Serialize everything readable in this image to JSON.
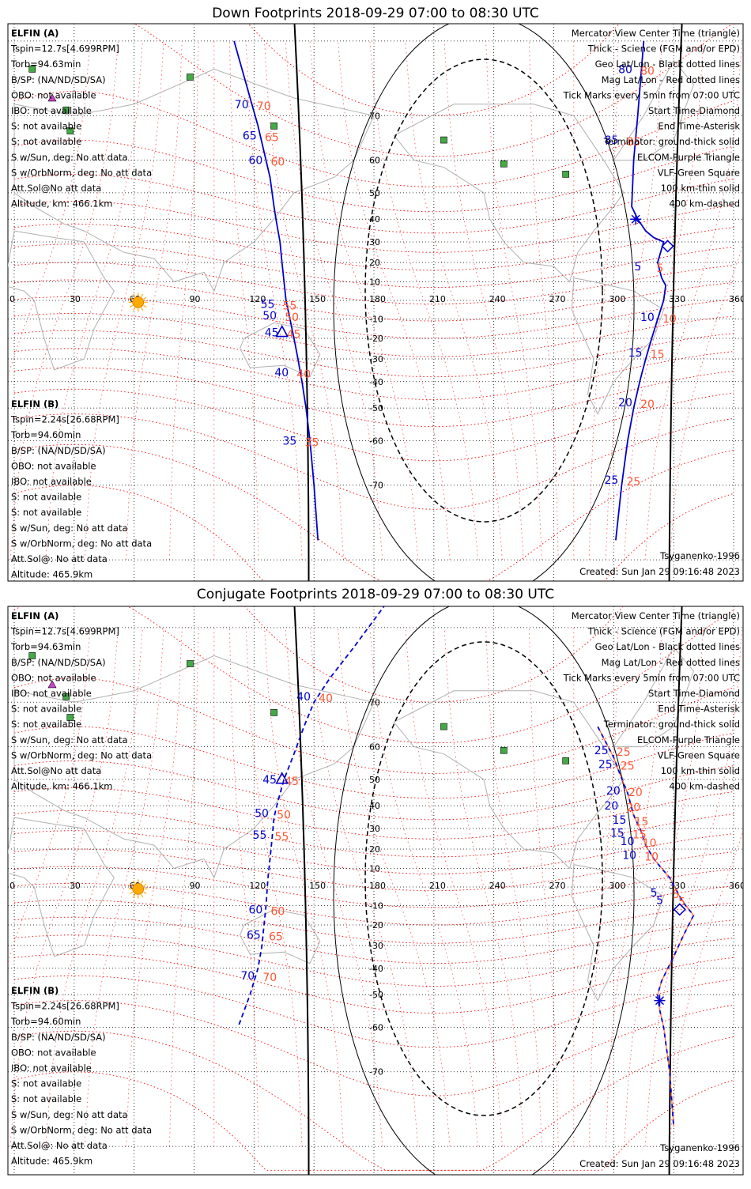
{
  "colors": {
    "sat_a": "#0000cc",
    "sat_b": "#ff5533",
    "mag": "#ff0000",
    "elf": "#cc44cc",
    "vlf": "#44aa44",
    "coast": "#b0b0b0",
    "sun": "#ffaa00"
  },
  "panels": [
    {
      "title": "Down Footprints 2018-09-29 07:00 to 08:30 UTC",
      "sat_a": [
        "ELFIN (A)",
        "Tspin=12.7s[4.699RPM]",
        "Torb=94.63min",
        "B/SP: (NA/ND/SD/SA)",
        "OBO: not available",
        "IBO: not available",
        "S: not available",
        "S: not available",
        "S w/Sun, deg: No att data",
        "S w/OrbNorm, deg: No att data",
        "Att.Sol@No att data",
        "Altitude, km: 466.1km"
      ],
      "sat_b": [
        "ELFIN (B)",
        "Tspin=2.24s[26.68RPM]",
        "Torb=94.60min",
        "B/SP: (NA/ND/SD/SA)",
        "OBO: not available",
        "IBO: not available",
        "S: not available",
        "S: not available",
        "S w/Sun, deg: No att data",
        "S w/OrbNorm, deg: No att data",
        "Att.Sol@: No att data",
        "Altitude: 465.9km"
      ],
      "legend": [
        "Mercator View Center Time (triangle)",
        "Thick - Science (FGM and/or EPD)",
        "Geo Lat/Lon - Black dotted lines",
        "Mag Lat/Lon - Red dotted lines",
        "Tick Marks every 5min from 07:00 UTC",
        "Start Time-Diamond",
        "End Time-Asterisk",
        "Terminator: ground-thick solid",
        "ELCOM-Purple Triangle",
        "VLF-Green Square",
        "100 km-thin solid",
        "400 km-dashed"
      ],
      "model": "Tsyganenko-1996",
      "created": "Created: Sun Jan 29 09:16:48 2023"
    },
    {
      "title": "Conjugate Footprints 2018-09-29 07:00 to 08:30 UTC",
      "sat_a": [
        "ELFIN (A)",
        "Tspin=12.7s[4.699RPM]",
        "Torb=94.63min",
        "B/SP: (NA/ND/SD/SA)",
        "OBO: not available",
        "IBO: not available",
        "S: not available",
        "S: not available",
        "S w/Sun, deg: No att data",
        "S w/OrbNorm, deg: No att data",
        "Att.Sol@No att data",
        "Altitude, km: 466.1km"
      ],
      "sat_b": [
        "ELFIN (B)",
        "Tspin=2.24s[26.68RPM]",
        "Torb=94.60min",
        "B/SP: (NA/ND/SD/SA)",
        "OBO: not available",
        "IBO: not available",
        "S: not available",
        "S: not available",
        "S w/Sun, deg: No att data",
        "S w/OrbNorm, deg: No att data",
        "Att.Sol@: No att data",
        "Altitude: 465.9km"
      ],
      "legend": [
        "Mercator View Center Time (triangle)",
        "Thick - Science (FGM and/or EPD)",
        "Geo Lat/Lon - Black dotted lines",
        "Mag Lat/Lon - Red dotted lines",
        "Tick Marks every 5min from 07:00 UTC",
        "Start Time-Diamond",
        "End Time-Asterisk",
        "Terminator: ground-thick solid",
        "ELCOM-Purple Triangle",
        "VLF-Green Square",
        "100 km-thin solid",
        "400 km-dashed"
      ],
      "model": "Tsyganenko-1996",
      "created": "Created: Sun Jan 29 09:16:48 2023"
    }
  ],
  "chart_data": [
    {
      "type": "scatter",
      "title": "Down Footprints 2018-09-29 07:00 to 08:30 UTC",
      "x_ticks": [
        0,
        30,
        60,
        90,
        120,
        150,
        180,
        210,
        240,
        270,
        300,
        330,
        360
      ],
      "y_ticks": [
        70,
        60,
        50,
        40,
        30,
        20,
        10,
        -10,
        -20,
        -30,
        -40,
        -50,
        -60,
        -70
      ],
      "vlf_stations": [
        [
          9,
          77
        ],
        [
          26,
          71
        ],
        [
          28,
          67
        ],
        [
          88,
          76
        ],
        [
          130,
          68
        ],
        [
          215,
          65
        ],
        [
          245,
          59
        ],
        [
          276,
          56
        ]
      ],
      "elcom_stations": [
        [
          19,
          73
        ]
      ],
      "sun": [
        62,
        -1
      ],
      "series": [
        {
          "name": "ELFIN (A)",
          "style": "solid",
          "points": [
            [
              110,
              80
            ],
            [
              122,
              68
            ],
            [
              128,
              55
            ],
            [
              130,
              45
            ],
            [
              131,
              40
            ],
            [
              132,
              35
            ],
            [
              133,
              30
            ],
            [
              134,
              20
            ],
            [
              135,
              10
            ],
            [
              136,
              0
            ],
            [
              138,
              -10
            ],
            [
              140,
              -20
            ],
            [
              142,
              -30
            ],
            [
              144,
              -40
            ],
            [
              146,
              -50
            ],
            [
              148,
              -60
            ],
            [
              150,
              -70
            ],
            [
              152,
              -78
            ]
          ],
          "ticks": [
            {
              "n": 70,
              "lon": 119,
              "lat": 72
            },
            {
              "n": 65,
              "lon": 123,
              "lat": 66
            },
            {
              "n": 60,
              "lon": 126,
              "lat": 60
            },
            {
              "n": 55,
              "lon": 132,
              "lat": -2
            },
            {
              "n": 50,
              "lon": 133,
              "lat": -8
            },
            {
              "n": 45,
              "lon": 134,
              "lat": -17
            },
            {
              "n": 40,
              "lon": 139,
              "lat": -36
            },
            {
              "n": 35,
              "lon": 143,
              "lat": -60
            }
          ],
          "center": {
            "n": 45,
            "lon": 134,
            "lat": -17
          }
        },
        {
          "name": "ELFIN (B)",
          "style": "solid",
          "points": [
            [
              315,
              80
            ],
            [
              312,
              70
            ],
            [
              310,
              60
            ],
            [
              309,
              45
            ],
            [
              312,
              40
            ],
            [
              316,
              35
            ],
            [
              320,
              32
            ],
            [
              325,
              30
            ],
            [
              322,
              20
            ],
            [
              324,
              12
            ],
            [
              326,
              8
            ],
            [
              325,
              0
            ],
            [
              322,
              -10
            ],
            [
              319,
              -20
            ],
            [
              316,
              -30
            ],
            [
              313,
              -40
            ],
            [
              310,
              -50
            ],
            [
              307,
              -60
            ],
            [
              304,
              -70
            ],
            [
              301,
              -78
            ]
          ],
          "ticks": [
            {
              "n": 80,
              "lon": 311,
              "lat": 77
            },
            {
              "n": 85,
              "lon": 304,
              "lat": 65
            },
            {
              "n": 5,
              "lon": 319,
              "lat": 18
            },
            {
              "n": 10,
              "lon": 322,
              "lat": -9
            },
            {
              "n": 15,
              "lon": 316,
              "lat": -27
            },
            {
              "n": 20,
              "lon": 311,
              "lat": -48
            },
            {
              "n": 25,
              "lon": 304,
              "lat": -69
            }
          ],
          "start": [
            327,
            28
          ],
          "end": [
            311,
            40
          ]
        }
      ]
    },
    {
      "type": "scatter",
      "title": "Conjugate Footprints 2018-09-29 07:00 to 08:30 UTC",
      "x_ticks": [
        0,
        30,
        60,
        90,
        120,
        150,
        180,
        210,
        240,
        270,
        300,
        330,
        360
      ],
      "y_ticks": [
        70,
        60,
        50,
        40,
        30,
        20,
        10,
        -10,
        -20,
        -30,
        -40,
        -50,
        -60,
        -70
      ],
      "vlf_stations": [
        [
          9,
          77
        ],
        [
          26,
          71
        ],
        [
          28,
          67
        ],
        [
          88,
          76
        ],
        [
          130,
          68
        ],
        [
          215,
          65
        ],
        [
          245,
          59
        ],
        [
          276,
          56
        ]
      ],
      "elcom_stations": [
        [
          19,
          73
        ]
      ],
      "sun": [
        62,
        -1
      ],
      "series": [
        {
          "name": "ELFIN (A)",
          "style": "dashed",
          "points": [
            [
              186,
              82
            ],
            [
              170,
              78
            ],
            [
              158,
              74
            ],
            [
              150,
              70
            ],
            [
              145,
              65
            ],
            [
              140,
              58
            ],
            [
              135,
              50
            ],
            [
              132,
              42
            ],
            [
              130,
              35
            ],
            [
              129,
              25
            ],
            [
              128,
              15
            ],
            [
              127,
              5
            ],
            [
              126,
              -10
            ],
            [
              125,
              -20
            ],
            [
              124,
              -30
            ],
            [
              122,
              -40
            ],
            [
              118,
              -50
            ],
            [
              112,
              -60
            ]
          ],
          "ticks": [
            {
              "n": 40,
              "lon": 150,
              "lat": 71
            },
            {
              "n": 45,
              "lon": 133,
              "lat": 50
            },
            {
              "n": 50,
              "lon": 129,
              "lat": 37
            },
            {
              "n": 55,
              "lon": 128,
              "lat": 27
            },
            {
              "n": 60,
              "lon": 126,
              "lat": -12
            },
            {
              "n": 65,
              "lon": 125,
              "lat": -25
            },
            {
              "n": 70,
              "lon": 122,
              "lat": -43
            }
          ],
          "center": {
            "n": 45,
            "lon": 134,
            "lat": 50
          }
        },
        {
          "name": "ELFIN (B)",
          "style": "dashed",
          "points": [
            [
              292,
              65
            ],
            [
              300,
              57
            ],
            [
              303,
              52
            ],
            [
              307,
              45
            ],
            [
              310,
              36
            ],
            [
              314,
              28
            ],
            [
              316,
              22
            ],
            [
              320,
              15
            ],
            [
              324,
              10
            ],
            [
              328,
              5
            ],
            [
              333,
              -5
            ],
            [
              336,
              -10
            ],
            [
              340,
              -15
            ],
            [
              335,
              -25
            ],
            [
              330,
              -35
            ],
            [
              324,
              -45
            ],
            [
              322,
              -50
            ],
            [
              323,
              -55
            ],
            [
              325,
              -60
            ],
            [
              328,
              -70
            ],
            [
              330,
              -78
            ]
          ],
          "ticks": [
            {
              "n": 25,
              "lon": 299,
              "lat": 59
            },
            {
              "n": 20,
              "lon": 304,
              "lat": 40
            },
            {
              "n": 15,
              "lon": 307,
              "lat": 28
            },
            {
              "n": 10,
              "lon": 313,
              "lat": 17
            },
            {
              "n": 5,
              "lon": 327,
              "lat": -3
            },
            {
              "n": 25,
              "lon": 301,
              "lat": 55
            },
            {
              "n": 20,
              "lon": 305,
              "lat": 46
            },
            {
              "n": 15,
              "lon": 308,
              "lat": 34
            },
            {
              "n": 10,
              "lon": 312,
              "lat": 24
            },
            {
              "n": 5,
              "lon": 330,
              "lat": -7
            }
          ],
          "start": [
            333,
            -12
          ],
          "end": [
            323,
            -52
          ]
        }
      ]
    }
  ]
}
